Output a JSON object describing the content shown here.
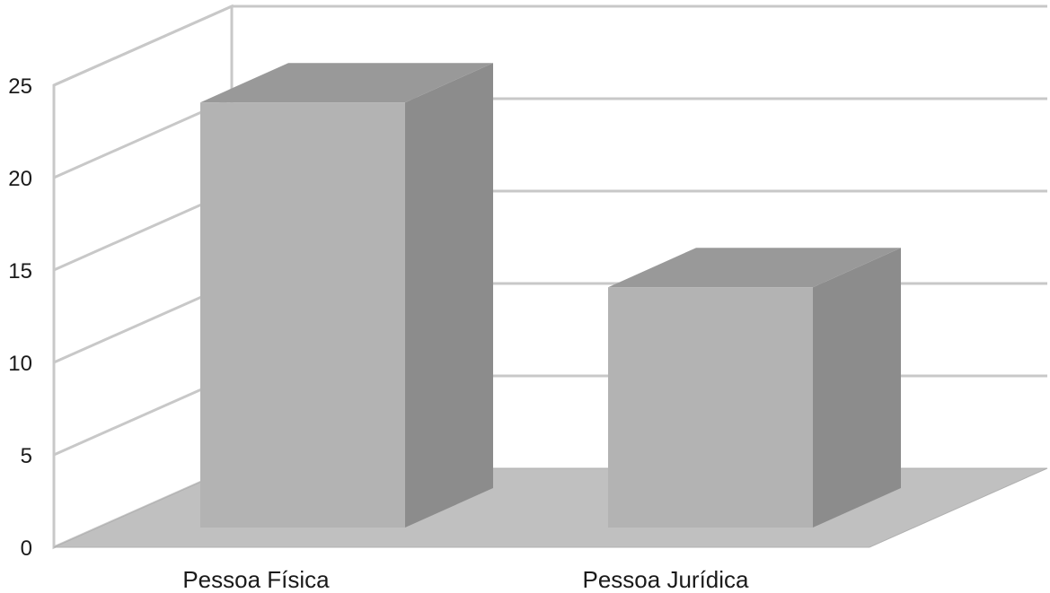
{
  "chart_data": {
    "type": "bar",
    "categories": [
      "Pessoa Física",
      "Pessoa Jurídica"
    ],
    "values": [
      23,
      13
    ],
    "ylim": [
      0,
      25
    ],
    "yticks": [
      "0",
      "5",
      "10",
      "15",
      "20",
      "25"
    ],
    "grid": true,
    "three_d": true,
    "colors": {
      "bar_front": "#b3b3b3",
      "bar_side": "#8c8c8c",
      "bar_top": "#999999",
      "floor": "#c0c0c0",
      "grid": "#c8c8c8",
      "wall": "#ffffff"
    }
  }
}
